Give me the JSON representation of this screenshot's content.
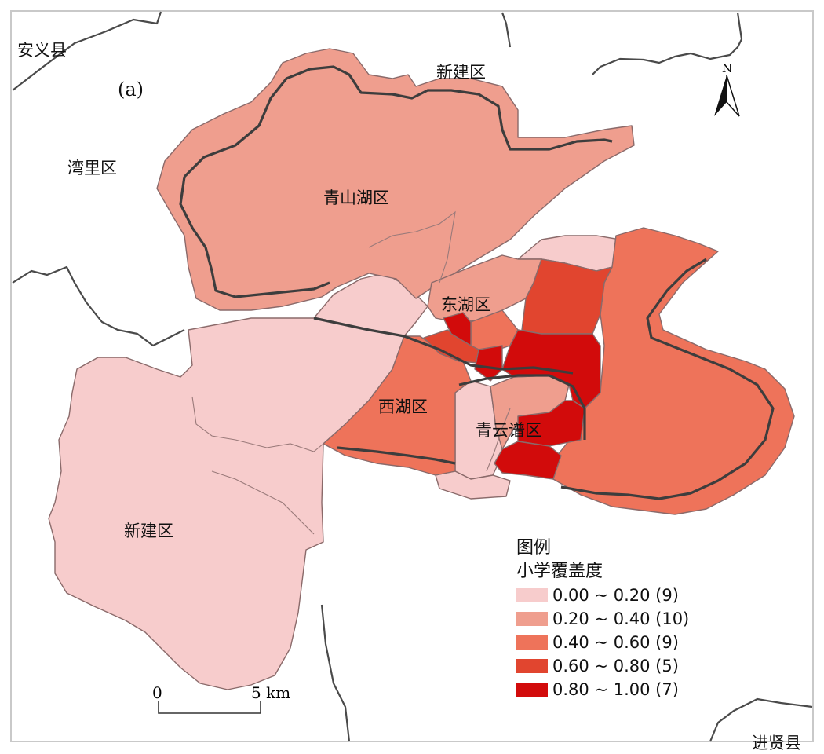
{
  "panel_label": "(a)",
  "places": {
    "anyi": "安义县",
    "xinjian_top": "新建区",
    "wanli": "湾里区",
    "qingshanhu": "青山湖区",
    "donghu": "东湖区",
    "xihu": "西湖区",
    "qingyunpu": "青云谱区",
    "xinjian_bottom": "新建区",
    "jinxian": "进贤县"
  },
  "north_arrow": {
    "label": "N"
  },
  "scale_bar": {
    "start": "0",
    "end": "5 km"
  },
  "legend": {
    "title": "图例",
    "subtitle": "小学覆盖度",
    "classes": [
      {
        "range": "0.00 ~ 0.20 (9)",
        "color": "#f7cccc"
      },
      {
        "range": "0.20 ~ 0.40 (10)",
        "color": "#ef9e8e"
      },
      {
        "range": "0.40 ~ 0.60 (9)",
        "color": "#ee735a"
      },
      {
        "range": "0.60 ~ 0.80 (5)",
        "color": "#e1452f"
      },
      {
        "range": "0.80 ~ 1.00 (7)",
        "color": "#d20b0b"
      }
    ]
  }
}
